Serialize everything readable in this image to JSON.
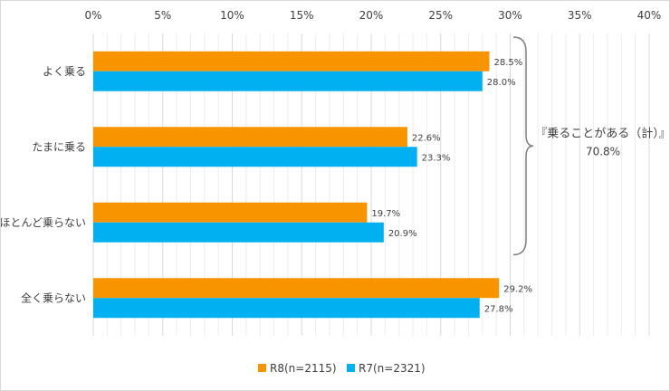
{
  "chart_data": {
    "type": "bar",
    "orientation": "horizontal",
    "categories": [
      "よく乗る",
      "たまに乗る",
      "ほとんど乗らない",
      "全く乗らない"
    ],
    "series": [
      {
        "name": "R8(n=2115)",
        "values": [
          28.5,
          22.6,
          19.7,
          29.2
        ],
        "labels": [
          "28.5%",
          "22.6%",
          "19.7%",
          "29.2%"
        ],
        "color": "#f79400"
      },
      {
        "name": "R7(n=2321)",
        "values": [
          28.0,
          23.3,
          20.9,
          27.8
        ],
        "labels": [
          "28.0%",
          "23.3%",
          "20.9%",
          "27.8%"
        ],
        "color": "#00b0f0"
      }
    ],
    "xlim": [
      0,
      40
    ],
    "xticks": [
      0,
      5,
      10,
      15,
      20,
      25,
      30,
      35,
      40
    ],
    "xtick_labels": [
      "0%",
      "5%",
      "10%",
      "15%",
      "20%",
      "25%",
      "30%",
      "35%",
      "40%"
    ],
    "x_axis_position": "top",
    "grid": true,
    "legend_position": "bottom",
    "annotation": {
      "text": "『乗ることがある（計）』",
      "value": "70.8%",
      "brace_spans_categories": [
        "よく乗る",
        "たまに乗る",
        "ほとんど乗らない"
      ]
    },
    "colors": {
      "grid_major": "#d9d9d9",
      "grid_minor": "#ececec",
      "text": "#404040",
      "brace": "#7f7f7f"
    }
  }
}
